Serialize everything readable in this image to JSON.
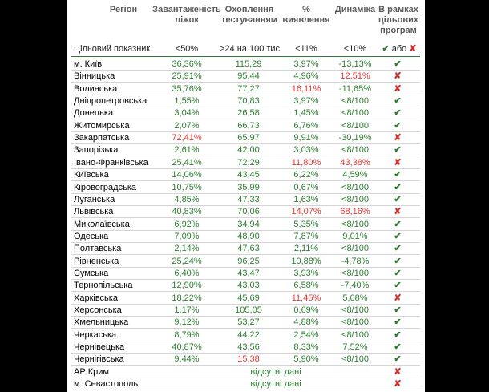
{
  "header": {
    "region": "Регіон",
    "beds": "Завантаженість ліжок",
    "testing": "Охоплення тестуванням",
    "detection": "% виявлення",
    "dynamics": "Динаміка",
    "program": "В рамках цільових програм"
  },
  "target": {
    "label": "Цільовий показник",
    "beds": "<50%",
    "testing": ">24 на 100 тис.",
    "detection": "<11%",
    "dynamics": "<10%",
    "program_ok": "✔",
    "program_or": "або",
    "program_bad": "✘"
  },
  "colors": {
    "green": "#2e7d32",
    "red": "#d32f2f"
  },
  "rows": [
    {
      "region": "м. Київ",
      "beds": "36,36%",
      "testing": "115,29",
      "detection": "3,97%",
      "dynamics": "-13,13%",
      "program": "ok",
      "flags": {
        "beds": "g",
        "testing": "g",
        "detection": "g",
        "dynamics": "g"
      }
    },
    {
      "region": "Вінницька",
      "beds": "25,91%",
      "testing": "95,44",
      "detection": "4,96%",
      "dynamics": "12,51%",
      "program": "bad",
      "flags": {
        "beds": "g",
        "testing": "g",
        "detection": "g",
        "dynamics": "r"
      }
    },
    {
      "region": "Волинська",
      "beds": "35,76%",
      "testing": "77,27",
      "detection": "16,11%",
      "dynamics": "-11,65%",
      "program": "bad",
      "flags": {
        "beds": "g",
        "testing": "g",
        "detection": "r",
        "dynamics": "g"
      }
    },
    {
      "region": "Дніпропетровська",
      "beds": "1,55%",
      "testing": "70,83",
      "detection": "3,97%",
      "dynamics": "<8/100",
      "program": "ok",
      "flags": {
        "beds": "g",
        "testing": "g",
        "detection": "g",
        "dynamics": "g"
      }
    },
    {
      "region": "Донецька",
      "beds": "3,04%",
      "testing": "26,58",
      "detection": "1,45%",
      "dynamics": "<8/100",
      "program": "ok",
      "flags": {
        "beds": "g",
        "testing": "g",
        "detection": "g",
        "dynamics": "g"
      }
    },
    {
      "region": "Житомирська",
      "beds": "2,07%",
      "testing": "66,73",
      "detection": "6,76%",
      "dynamics": "<8/100",
      "program": "ok",
      "flags": {
        "beds": "g",
        "testing": "g",
        "detection": "g",
        "dynamics": "g"
      }
    },
    {
      "region": "Закарпатська",
      "beds": "72,41%",
      "testing": "65,97",
      "detection": "9,91%",
      "dynamics": "-30,19%",
      "program": "bad",
      "flags": {
        "beds": "r",
        "testing": "g",
        "detection": "g",
        "dynamics": "g"
      }
    },
    {
      "region": "Запорізька",
      "beds": "2,61%",
      "testing": "42,00",
      "detection": "3,03%",
      "dynamics": "<8/100",
      "program": "ok",
      "flags": {
        "beds": "g",
        "testing": "g",
        "detection": "g",
        "dynamics": "g"
      }
    },
    {
      "region": "Івано-Франківська",
      "beds": "25,41%",
      "testing": "72,29",
      "detection": "11,80%",
      "dynamics": "43,38%",
      "program": "bad",
      "flags": {
        "beds": "g",
        "testing": "g",
        "detection": "r",
        "dynamics": "r"
      }
    },
    {
      "region": "Київська",
      "beds": "14,06%",
      "testing": "43,45",
      "detection": "6,22%",
      "dynamics": "4,59%",
      "program": "ok",
      "flags": {
        "beds": "g",
        "testing": "g",
        "detection": "g",
        "dynamics": "g"
      }
    },
    {
      "region": "Кіровоградська",
      "beds": "10,75%",
      "testing": "35,99",
      "detection": "0,67%",
      "dynamics": "<8/100",
      "program": "ok",
      "flags": {
        "beds": "g",
        "testing": "g",
        "detection": "g",
        "dynamics": "g"
      }
    },
    {
      "region": "Луганська",
      "beds": "4,85%",
      "testing": "47,33",
      "detection": "1,63%",
      "dynamics": "<8/100",
      "program": "ok",
      "flags": {
        "beds": "g",
        "testing": "g",
        "detection": "g",
        "dynamics": "g"
      }
    },
    {
      "region": "Львівська",
      "beds": "40,83%",
      "testing": "70,06",
      "detection": "14,07%",
      "dynamics": "68,16%",
      "program": "bad",
      "flags": {
        "beds": "g",
        "testing": "g",
        "detection": "r",
        "dynamics": "r"
      }
    },
    {
      "region": "Миколаївська",
      "beds": "6,92%",
      "testing": "34,94",
      "detection": "5,35%",
      "dynamics": "<8/100",
      "program": "ok",
      "flags": {
        "beds": "g",
        "testing": "g",
        "detection": "g",
        "dynamics": "g"
      }
    },
    {
      "region": "Одеська",
      "beds": "7,09%",
      "testing": "48,90",
      "detection": "7,87%",
      "dynamics": "9,01%",
      "program": "ok",
      "flags": {
        "beds": "g",
        "testing": "g",
        "detection": "g",
        "dynamics": "g"
      }
    },
    {
      "region": "Полтавська",
      "beds": "2,14%",
      "testing": "47,63",
      "detection": "2,11%",
      "dynamics": "<8/100",
      "program": "ok",
      "flags": {
        "beds": "g",
        "testing": "g",
        "detection": "g",
        "dynamics": "g"
      }
    },
    {
      "region": "Рівненська",
      "beds": "25,24%",
      "testing": "96,25",
      "detection": "10,88%",
      "dynamics": "-4,78%",
      "program": "ok",
      "flags": {
        "beds": "g",
        "testing": "g",
        "detection": "g",
        "dynamics": "g"
      }
    },
    {
      "region": "Сумська",
      "beds": "6,40%",
      "testing": "43,47",
      "detection": "3,93%",
      "dynamics": "<8/100",
      "program": "ok",
      "flags": {
        "beds": "g",
        "testing": "g",
        "detection": "g",
        "dynamics": "g"
      }
    },
    {
      "region": "Тернопільська",
      "beds": "12,90%",
      "testing": "43,03",
      "detection": "6,58%",
      "dynamics": "-7,40%",
      "program": "ok",
      "flags": {
        "beds": "g",
        "testing": "g",
        "detection": "g",
        "dynamics": "g"
      }
    },
    {
      "region": "Харківська",
      "beds": "18,22%",
      "testing": "45,69",
      "detection": "11,45%",
      "dynamics": "5,08%",
      "program": "bad",
      "flags": {
        "beds": "g",
        "testing": "g",
        "detection": "r",
        "dynamics": "g"
      }
    },
    {
      "region": "Херсонська",
      "beds": "1,17%",
      "testing": "105,05",
      "detection": "0,69%",
      "dynamics": "<8/100",
      "program": "ok",
      "flags": {
        "beds": "g",
        "testing": "g",
        "detection": "g",
        "dynamics": "g"
      }
    },
    {
      "region": "Хмельницька",
      "beds": "9,12%",
      "testing": "53,27",
      "detection": "4,88%",
      "dynamics": "<8/100",
      "program": "ok",
      "flags": {
        "beds": "g",
        "testing": "g",
        "detection": "g",
        "dynamics": "g"
      }
    },
    {
      "region": "Черкаська",
      "beds": "8,79%",
      "testing": "44,22",
      "detection": "2,54%",
      "dynamics": "<8/100",
      "program": "ok",
      "flags": {
        "beds": "g",
        "testing": "g",
        "detection": "g",
        "dynamics": "g"
      }
    },
    {
      "region": "Чернівецька",
      "beds": "40,87%",
      "testing": "43,56",
      "detection": "8,33%",
      "dynamics": "7,52%",
      "program": "ok",
      "flags": {
        "beds": "g",
        "testing": "g",
        "detection": "g",
        "dynamics": "g"
      }
    },
    {
      "region": "Чернігівська",
      "beds": "9,44%",
      "testing": "15,38",
      "detection": "5,90%",
      "dynamics": "<8/100",
      "program": "ok",
      "flags": {
        "beds": "g",
        "testing": "r",
        "detection": "g",
        "dynamics": "g"
      }
    },
    {
      "region": "АР Крим",
      "merged": "відсутні дані",
      "program": "bad"
    },
    {
      "region": "м. Севастополь",
      "merged": "відсутні дані",
      "program": "bad"
    }
  ],
  "glyphs": {
    "ok": "✔",
    "bad": "✘"
  }
}
